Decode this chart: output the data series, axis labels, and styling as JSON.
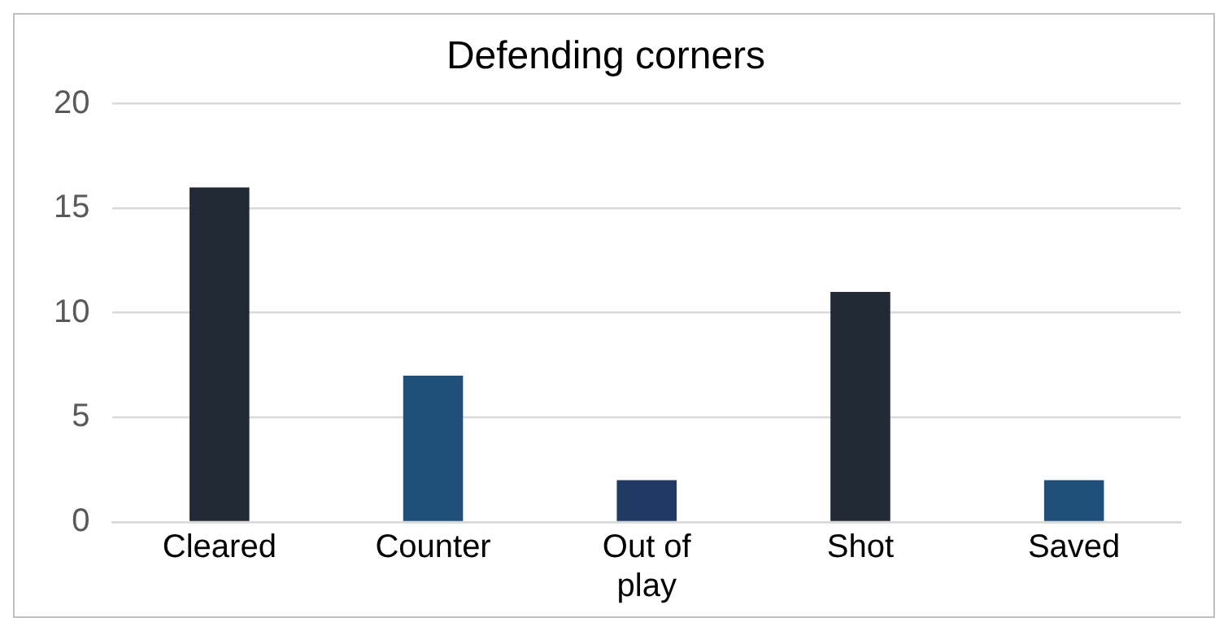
{
  "chart_data": {
    "type": "bar",
    "title": "Defending corners",
    "categories": [
      "Cleared",
      "Counter",
      "Out of play",
      "Shot",
      "Saved"
    ],
    "values": [
      16,
      7,
      2,
      11,
      2
    ],
    "colors": [
      "#222a35",
      "#1f4e79",
      "#203864",
      "#222a35",
      "#1f4e79"
    ],
    "ylim": [
      0,
      20
    ],
    "yticks": [
      0,
      5,
      10,
      15,
      20
    ],
    "grid": "y",
    "legend": false
  }
}
